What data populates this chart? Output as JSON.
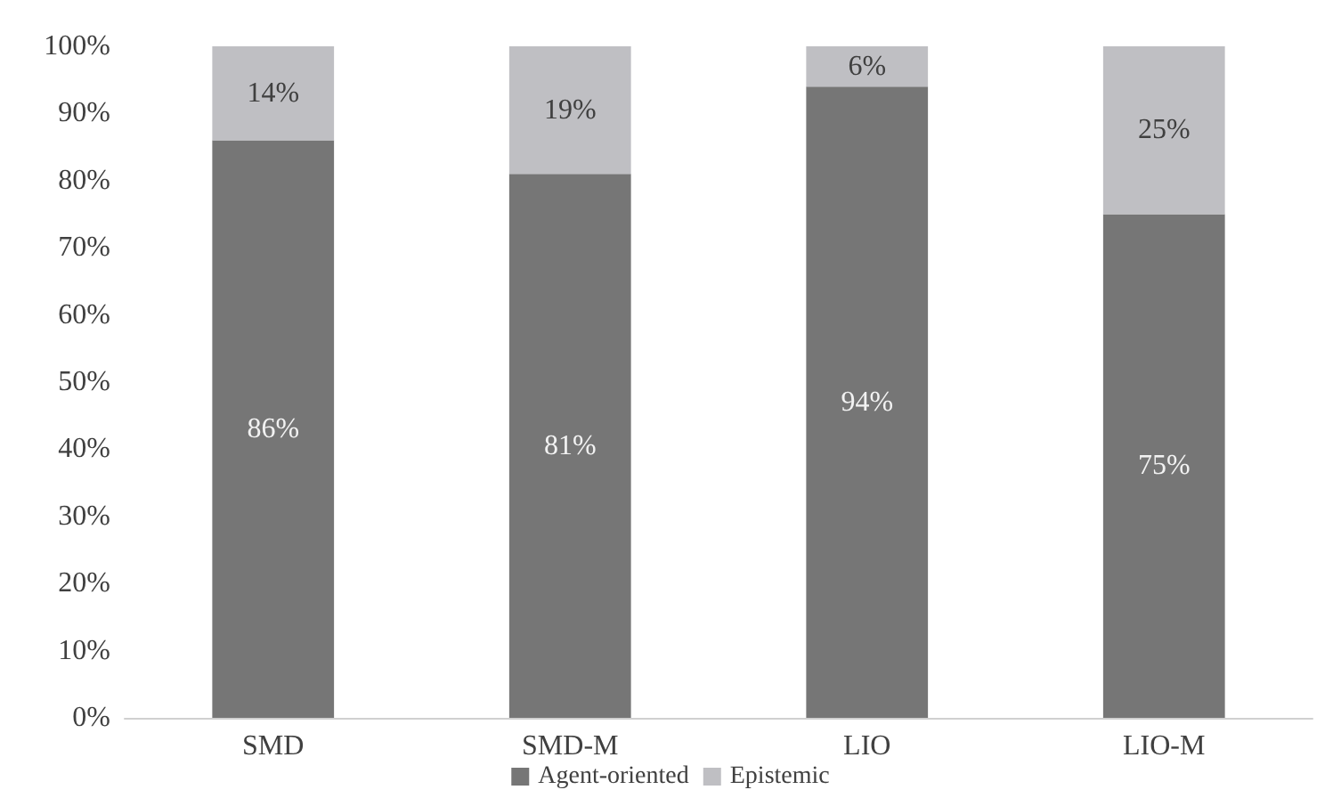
{
  "chart_data": {
    "type": "bar",
    "stacked": true,
    "categories": [
      "SMD",
      "SMD-M",
      "LIO",
      "LIO-M"
    ],
    "series": [
      {
        "name": "Agent-oriented",
        "color": "#767676",
        "values": [
          86,
          81,
          94,
          75
        ],
        "value_labels": [
          "86%",
          "81%",
          "94%",
          "75%"
        ]
      },
      {
        "name": "Epistemic",
        "color": "#bfbfc3",
        "values": [
          14,
          19,
          6,
          25
        ],
        "value_labels": [
          "14%",
          "19%",
          "6%",
          "25%"
        ]
      }
    ],
    "ylim": [
      0,
      100
    ],
    "yticks": [
      {
        "value": 0,
        "label": "0%"
      },
      {
        "value": 10,
        "label": "10%"
      },
      {
        "value": 20,
        "label": "20%"
      },
      {
        "value": 30,
        "label": "30%"
      },
      {
        "value": 40,
        "label": "40%"
      },
      {
        "value": 50,
        "label": "50%"
      },
      {
        "value": 60,
        "label": "60%"
      },
      {
        "value": 70,
        "label": "70%"
      },
      {
        "value": 80,
        "label": "80%"
      },
      {
        "value": 90,
        "label": "90%"
      },
      {
        "value": 100,
        "label": "100%"
      }
    ],
    "grid": false,
    "legend": "bottom"
  }
}
